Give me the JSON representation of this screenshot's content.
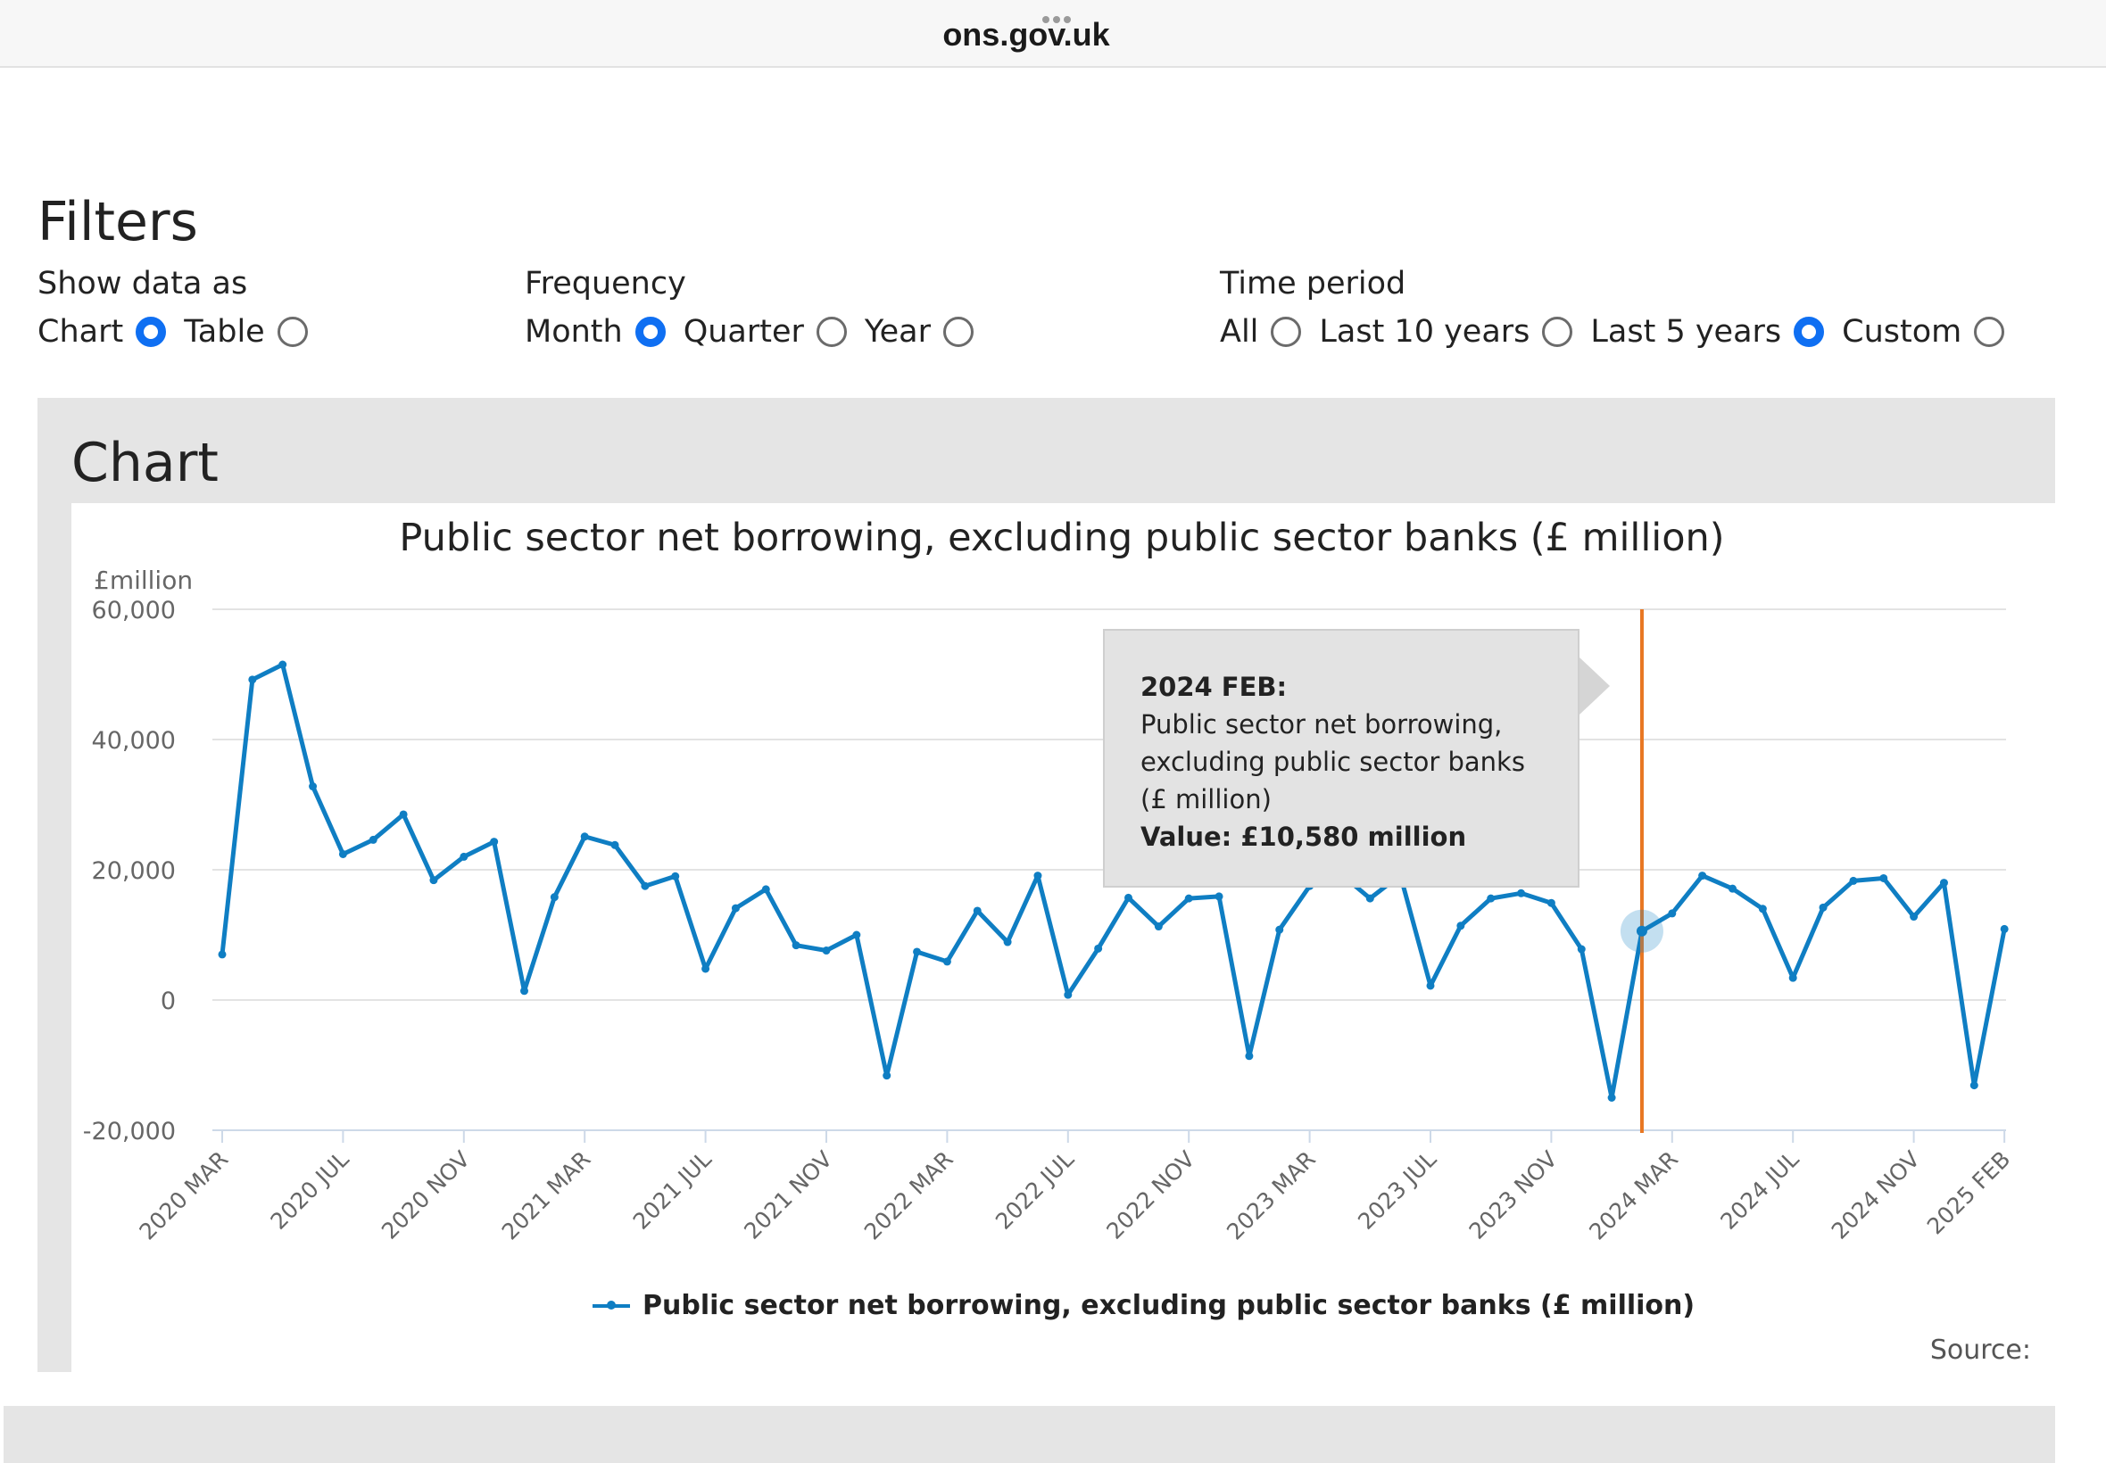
{
  "browser": {
    "url": "ons.gov.uk"
  },
  "filters": {
    "title": "Filters",
    "show_data_as": {
      "label": "Show data as",
      "options": [
        "Chart",
        "Table"
      ],
      "selected": "Chart"
    },
    "frequency": {
      "label": "Frequency",
      "options": [
        "Month",
        "Quarter",
        "Year"
      ],
      "selected": "Month"
    },
    "time_period": {
      "label": "Time period",
      "options": [
        "All",
        "Last 10 years",
        "Last 5 years",
        "Custom"
      ],
      "selected": "Last 5 years"
    }
  },
  "chart_section": {
    "heading": "Chart",
    "source_label": "Source:"
  },
  "tooltip": {
    "date": "2024 FEB:",
    "series": "Public sector net borrowing, excluding public sector banks (£ million)",
    "value": "Value: £10,580 million"
  },
  "chart_data": {
    "type": "line",
    "title": "Public sector net borrowing, excluding public sector banks (£ million)",
    "ylabel": "£million",
    "ylim": [
      -20000,
      60000
    ],
    "yticks": [
      60000,
      40000,
      20000,
      0,
      -20000
    ],
    "ytick_labels": [
      "60,000",
      "40,000",
      "20,000",
      "0",
      "-20,000"
    ],
    "xtick_labels": [
      "2020 MAR",
      "2020 JUL",
      "2020 NOV",
      "2021 MAR",
      "2021 JUL",
      "2021 NOV",
      "2022 MAR",
      "2022 JUL",
      "2022 NOV",
      "2023 MAR",
      "2023 JUL",
      "2023 NOV",
      "2024 MAR",
      "2024 JUL",
      "2024 NOV",
      "2025 FEB"
    ],
    "x": [
      "2020 MAR",
      "2020 APR",
      "2020 MAY",
      "2020 JUN",
      "2020 JUL",
      "2020 AUG",
      "2020 SEP",
      "2020 OCT",
      "2020 NOV",
      "2020 DEC",
      "2021 JAN",
      "2021 FEB",
      "2021 MAR",
      "2021 APR",
      "2021 MAY",
      "2021 JUN",
      "2021 JUL",
      "2021 AUG",
      "2021 SEP",
      "2021 OCT",
      "2021 NOV",
      "2021 DEC",
      "2022 JAN",
      "2022 FEB",
      "2022 MAR",
      "2022 APR",
      "2022 MAY",
      "2022 JUN",
      "2022 JUL",
      "2022 AUG",
      "2022 SEP",
      "2022 OCT",
      "2022 NOV",
      "2022 DEC",
      "2023 JAN",
      "2023 FEB",
      "2023 MAR",
      "2023 APR",
      "2023 MAY",
      "2023 JUN",
      "2023 JUL",
      "2023 AUG",
      "2023 SEP",
      "2023 OCT",
      "2023 NOV",
      "2023 DEC",
      "2024 JAN",
      "2024 FEB",
      "2024 MAR",
      "2024 APR",
      "2024 MAY",
      "2024 JUN",
      "2024 JUL",
      "2024 AUG",
      "2024 SEP",
      "2024 OCT",
      "2024 NOV",
      "2024 DEC",
      "2025 JAN",
      "2025 FEB"
    ],
    "series": [
      {
        "name": "Public sector net borrowing, excluding public sector banks (£ million)",
        "color": "#0f7ec3",
        "values": [
          7000,
          49200,
          51500,
          32800,
          22400,
          24600,
          28500,
          18400,
          22000,
          24300,
          1400,
          15800,
          25100,
          23800,
          17500,
          19000,
          4800,
          14100,
          17000,
          8400,
          7600,
          10000,
          -11600,
          7400,
          5900,
          13700,
          8900,
          19100,
          800,
          7900,
          15700,
          11300,
          15600,
          15900,
          -8600,
          10800,
          17500,
          19500,
          15600,
          19200,
          2200,
          11400,
          15600,
          16400,
          14900,
          7800,
          -15000,
          10580,
          13300,
          19100,
          17100,
          14000,
          3400,
          14200,
          18300,
          18700,
          12800,
          18000,
          -13100,
          10900
        ]
      }
    ],
    "highlight": {
      "x": "2024 FEB",
      "value": 10580,
      "line_color": "#e87722"
    },
    "grid": true,
    "legend_position": "bottom"
  }
}
